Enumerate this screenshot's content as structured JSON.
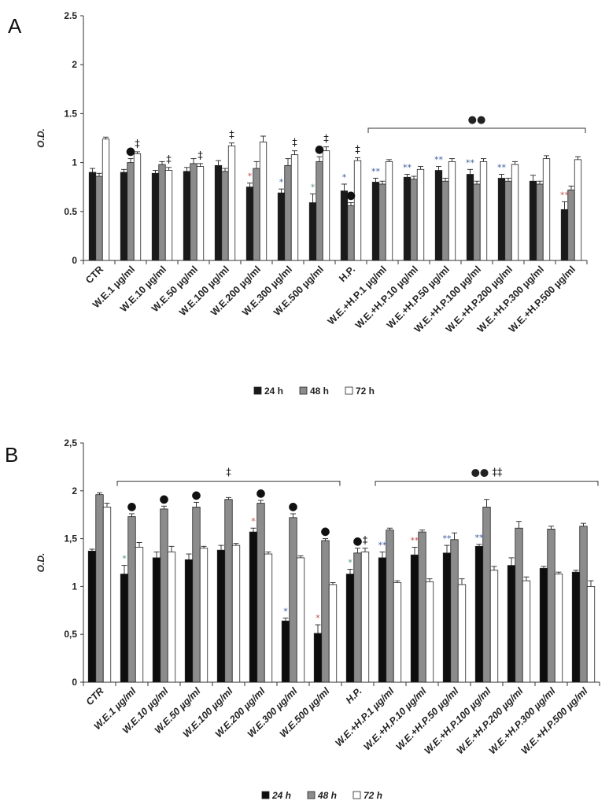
{
  "chart_data": [
    {
      "panel": "A",
      "type": "bar",
      "ylabel": "O.D.",
      "ylim": [
        0,
        2.5
      ],
      "yticks": [
        "0",
        "0.5",
        "1",
        "1.5",
        "2",
        "2.5"
      ],
      "grid": false,
      "legend_position": "bottom",
      "categories": [
        "CTR",
        "W.E.1 µg/ml",
        "W.E.10 µg/ml",
        "W.E.50 µg/ml",
        "W.E.100 µg/ml",
        "W.E.200 µg/ml",
        "W.E.300 µg/ml",
        "W.E.500 µg/ml",
        "H.P.",
        "W.E.+H.P.1 µg/ml",
        "W.E.+H.P.10 µg/ml",
        "W.E.+H.P.50 µg/ml",
        "W.E.+H.P.100 µg/ml",
        "W.E.+H.P.200 µg/ml",
        "W.E.+H.P.300 µg/ml",
        "W.E.+H.P.500 µg/ml"
      ],
      "series": [
        {
          "name": "24 h",
          "color": "#1a1a1a",
          "values": [
            0.9,
            0.9,
            0.89,
            0.91,
            0.97,
            0.75,
            0.69,
            0.59,
            0.71,
            0.8,
            0.85,
            0.92,
            0.88,
            0.84,
            0.81,
            0.52
          ],
          "errors": [
            0.04,
            0.03,
            0.03,
            0.04,
            0.05,
            0.04,
            0.04,
            0.09,
            0.07,
            0.04,
            0.03,
            0.04,
            0.05,
            0.04,
            0.06,
            0.08
          ]
        },
        {
          "name": "48 h",
          "color": "#8c8c8c",
          "values": [
            0.86,
            1.0,
            0.98,
            0.99,
            0.91,
            0.94,
            0.97,
            1.01,
            0.56,
            0.78,
            0.83,
            0.81,
            0.78,
            0.81,
            0.78,
            0.72
          ],
          "errors": [
            0.03,
            0.04,
            0.03,
            0.05,
            0.03,
            0.07,
            0.07,
            0.05,
            0.03,
            0.03,
            0.03,
            0.03,
            0.03,
            0.03,
            0.03,
            0.04
          ]
        },
        {
          "name": "72 h",
          "color": "#ffffff",
          "values": [
            1.24,
            1.09,
            0.92,
            0.96,
            1.17,
            1.21,
            1.08,
            1.12,
            1.02,
            1.01,
            0.93,
            1.01,
            1.01,
            0.98,
            1.04,
            1.03
          ],
          "errors": [
            0.02,
            0.02,
            0.03,
            0.03,
            0.03,
            0.06,
            0.04,
            0.04,
            0.03,
            0.02,
            0.03,
            0.03,
            0.03,
            0.03,
            0.03,
            0.03
          ]
        }
      ],
      "annotations": [
        {
          "text": "●",
          "cat": 1,
          "bar": 1,
          "kind": "dot"
        },
        {
          "text": "‡",
          "cat": 1,
          "bar": 2,
          "kind": "dag"
        },
        {
          "text": "‡",
          "cat": 2,
          "bar": 2,
          "kind": "dag"
        },
        {
          "text": "‡",
          "cat": 3,
          "bar": 2,
          "kind": "dag"
        },
        {
          "text": "‡",
          "cat": 4,
          "bar": 2,
          "kind": "dag"
        },
        {
          "text": "*",
          "cat": 5,
          "bar": 0,
          "kind": "red"
        },
        {
          "text": "*",
          "cat": 6,
          "bar": 0,
          "kind": "blue"
        },
        {
          "text": "‡",
          "cat": 6,
          "bar": 2,
          "kind": "dag"
        },
        {
          "text": "*",
          "cat": 7,
          "bar": 0,
          "kind": "green"
        },
        {
          "text": "●",
          "cat": 7,
          "bar": 1,
          "kind": "dot"
        },
        {
          "text": "‡",
          "cat": 7,
          "bar": 2,
          "kind": "dag"
        },
        {
          "text": "*",
          "cat": 8,
          "bar": 0,
          "kind": "blue"
        },
        {
          "text": "●",
          "cat": 8,
          "bar": 1,
          "kind": "dot"
        },
        {
          "text": "‡",
          "cat": 8,
          "bar": 2,
          "kind": "dag"
        },
        {
          "text": "**",
          "cat": 9,
          "bar": 0,
          "kind": "blue"
        },
        {
          "text": "**",
          "cat": 10,
          "bar": 0,
          "kind": "blue"
        },
        {
          "text": "**",
          "cat": 11,
          "bar": 0,
          "kind": "blue"
        },
        {
          "text": "**",
          "cat": 12,
          "bar": 0,
          "kind": "blue"
        },
        {
          "text": "**",
          "cat": 13,
          "bar": 0,
          "kind": "blue"
        },
        {
          "text": "**",
          "cat": 15,
          "bar": 0,
          "kind": "red"
        }
      ],
      "brackets": [
        {
          "from": 9,
          "to": 15,
          "label": "●●",
          "level": 1.35
        }
      ]
    },
    {
      "panel": "B",
      "type": "bar",
      "ylabel": "O.D.",
      "ylim": [
        0,
        2.5
      ],
      "yticks": [
        "0",
        "0,5",
        "1",
        "1,5",
        "2",
        "2,5"
      ],
      "grid": false,
      "legend_position": "bottom",
      "categories": [
        "CTR",
        "W.E.1 µg/ml",
        "W.E.10 µg/ml",
        "W.E.50 µg/ml",
        "W.E.100 µg/ml",
        "W.E.200 µg/ml",
        "W.E.300 µg/ml",
        "W.E.500 µg/ml",
        "H.P.",
        "W.E.+H.P.1 µg/ml",
        "W.E.+H.P.10 µg/ml",
        "W.E.+H.P.50 µg/ml",
        "W.E.+H.P.100 µg/ml",
        "W.E.+H.P.200 µg/ml",
        "W.E.+H.P.300 µg/ml",
        "W.E.+H.P.500 µg/ml"
      ],
      "series": [
        {
          "name": "24 h",
          "color": "#0d0d0d",
          "values": [
            1.37,
            1.13,
            1.3,
            1.28,
            1.38,
            1.57,
            0.64,
            0.51,
            1.13,
            1.3,
            1.33,
            1.35,
            1.42,
            1.22,
            1.19,
            1.15
          ],
          "errors": [
            0.02,
            0.09,
            0.06,
            0.06,
            0.05,
            0.04,
            0.03,
            0.09,
            0.05,
            0.06,
            0.08,
            0.08,
            0.02,
            0.08,
            0.02,
            0.02
          ]
        },
        {
          "name": "48 h",
          "color": "#8c8c8c",
          "values": [
            1.96,
            1.73,
            1.81,
            1.83,
            1.91,
            1.87,
            1.72,
            1.48,
            1.35,
            1.59,
            1.57,
            1.49,
            1.83,
            1.61,
            1.6,
            1.63
          ],
          "errors": [
            0.02,
            0.03,
            0.03,
            0.05,
            0.02,
            0.03,
            0.04,
            0.02,
            0.05,
            0.02,
            0.02,
            0.07,
            0.08,
            0.07,
            0.03,
            0.03
          ]
        },
        {
          "name": "72 h",
          "color": "#ffffff",
          "values": [
            1.83,
            1.41,
            1.36,
            1.4,
            1.43,
            1.34,
            1.3,
            1.02,
            1.36,
            1.04,
            1.05,
            1.02,
            1.17,
            1.06,
            1.13,
            1.0
          ],
          "errors": [
            0.04,
            0.05,
            0.06,
            0.02,
            0.02,
            0.02,
            0.02,
            0.02,
            0.04,
            0.02,
            0.03,
            0.06,
            0.04,
            0.04,
            0.02,
            0.06
          ]
        }
      ],
      "annotations": [
        {
          "text": "*",
          "cat": 1,
          "bar": 0,
          "kind": "green"
        },
        {
          "text": "●",
          "cat": 1,
          "bar": 1,
          "kind": "dot"
        },
        {
          "text": "●",
          "cat": 2,
          "bar": 1,
          "kind": "dot"
        },
        {
          "text": "●",
          "cat": 3,
          "bar": 1,
          "kind": "dot"
        },
        {
          "text": "*",
          "cat": 5,
          "bar": 0,
          "kind": "red"
        },
        {
          "text": "●",
          "cat": 5,
          "bar": 1,
          "kind": "dot"
        },
        {
          "text": "*",
          "cat": 6,
          "bar": 0,
          "kind": "blue"
        },
        {
          "text": "●",
          "cat": 6,
          "bar": 1,
          "kind": "dot"
        },
        {
          "text": "*",
          "cat": 7,
          "bar": 0,
          "kind": "red"
        },
        {
          "text": "●",
          "cat": 7,
          "bar": 1,
          "kind": "dot"
        },
        {
          "text": "*",
          "cat": 8,
          "bar": 0,
          "kind": "green"
        },
        {
          "text": "●",
          "cat": 8,
          "bar": 1,
          "kind": "dot"
        },
        {
          "text": "‡",
          "cat": 8,
          "bar": 2,
          "kind": "dag"
        },
        {
          "text": "**",
          "cat": 9,
          "bar": 0,
          "kind": "blue"
        },
        {
          "text": "**",
          "cat": 10,
          "bar": 0,
          "kind": "red"
        },
        {
          "text": "**",
          "cat": 11,
          "bar": 0,
          "kind": "blue"
        },
        {
          "text": "**",
          "cat": 12,
          "bar": 0,
          "kind": "blue"
        }
      ],
      "brackets": [
        {
          "from": 1,
          "to": 7,
          "label": "‡",
          "level": 2.1
        },
        {
          "from": 9,
          "to": 15,
          "label": "●●   ‡‡",
          "level": 2.1
        }
      ]
    }
  ],
  "panels": [
    {
      "letter": "A",
      "legend": [
        "24 h",
        "48 h",
        "72 h"
      ]
    },
    {
      "letter": "B",
      "legend": [
        "24 h",
        "48 h",
        "72 h"
      ]
    }
  ]
}
